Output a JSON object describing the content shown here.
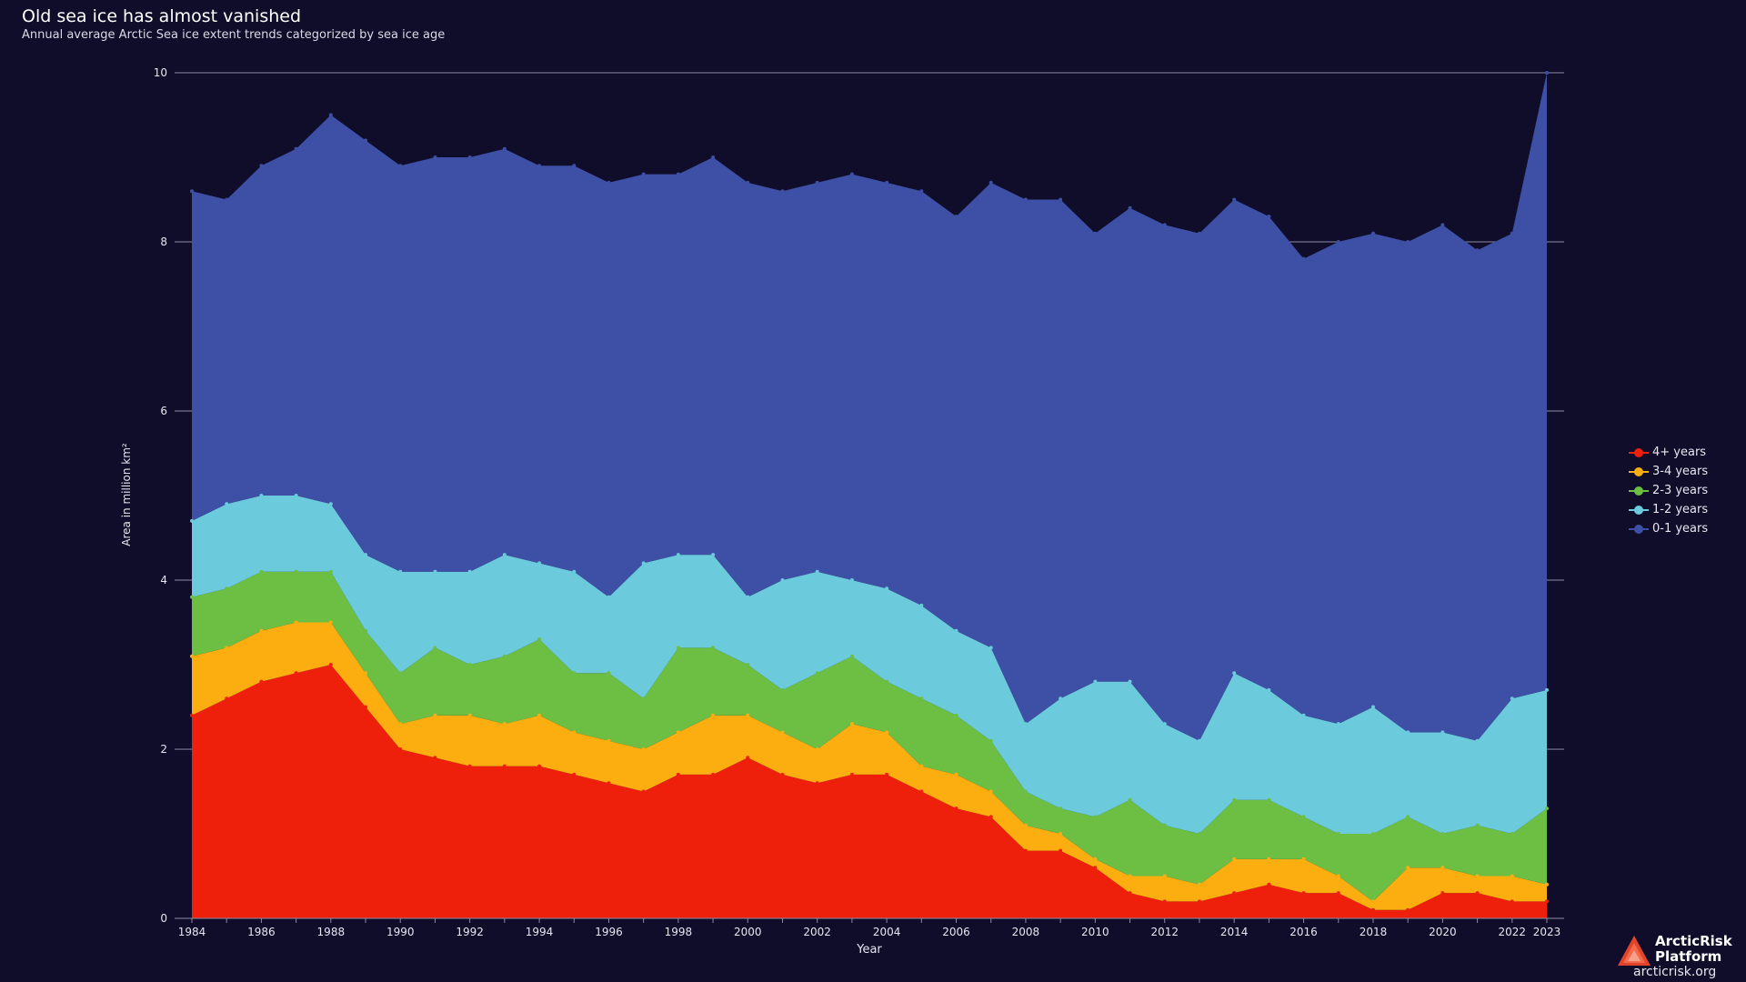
{
  "header": {
    "title": "Old sea ice has almost vanished",
    "subtitle": "Annual average Arctic Sea ice extent trends categorized by sea ice age"
  },
  "brand": {
    "name_line1": "ArcticRisk",
    "name_line2": "Platform",
    "url": "arcticrisk.org",
    "icon": "triangle-logo-icon"
  },
  "colors": {
    "background": "#100d2b",
    "grid": "#8c8aa3",
    "axis_text": "#e6e6ef"
  },
  "chart_data": {
    "type": "area",
    "stacked": true,
    "xlabel": "Year",
    "ylabel": "Area in million km²",
    "ylim": [
      0,
      10
    ],
    "yticks": [
      0,
      2,
      4,
      6,
      8,
      10
    ],
    "xticks": [
      1984,
      1986,
      1988,
      1990,
      1992,
      1994,
      1996,
      1998,
      2000,
      2002,
      2004,
      2006,
      2008,
      2010,
      2012,
      2014,
      2016,
      2018,
      2020,
      2022,
      2023
    ],
    "grid": "horizontal",
    "legend_position": "right",
    "x": [
      1984,
      1985,
      1986,
      1987,
      1988,
      1989,
      1990,
      1991,
      1992,
      1993,
      1994,
      1995,
      1996,
      1997,
      1998,
      1999,
      2000,
      2001,
      2002,
      2003,
      2004,
      2005,
      2006,
      2007,
      2008,
      2009,
      2010,
      2011,
      2012,
      2013,
      2014,
      2015,
      2016,
      2017,
      2018,
      2019,
      2020,
      2021,
      2022,
      2023
    ],
    "series": [
      {
        "name": "4+ years",
        "color": "#ee200c",
        "values": [
          2.4,
          2.6,
          2.8,
          2.9,
          3.0,
          2.5,
          2.0,
          1.9,
          1.8,
          1.8,
          1.8,
          1.7,
          1.6,
          1.5,
          1.7,
          1.7,
          1.9,
          1.7,
          1.6,
          1.7,
          1.7,
          1.5,
          1.3,
          1.2,
          0.8,
          0.8,
          0.6,
          0.3,
          0.2,
          0.2,
          0.3,
          0.4,
          0.3,
          0.3,
          0.1,
          0.1,
          0.3,
          0.3,
          0.2,
          0.2
        ]
      },
      {
        "name": "3-4 years",
        "color": "#fcae11",
        "values": [
          0.7,
          0.6,
          0.6,
          0.6,
          0.5,
          0.4,
          0.3,
          0.5,
          0.6,
          0.5,
          0.6,
          0.5,
          0.5,
          0.5,
          0.5,
          0.7,
          0.5,
          0.5,
          0.4,
          0.6,
          0.5,
          0.3,
          0.4,
          0.3,
          0.3,
          0.2,
          0.1,
          0.2,
          0.3,
          0.2,
          0.4,
          0.3,
          0.4,
          0.2,
          0.1,
          0.5,
          0.3,
          0.2,
          0.3,
          0.2
        ]
      },
      {
        "name": "2-3 years",
        "color": "#6cbf42",
        "values": [
          0.7,
          0.7,
          0.7,
          0.6,
          0.6,
          0.5,
          0.6,
          0.8,
          0.6,
          0.8,
          0.9,
          0.7,
          0.8,
          0.6,
          1.0,
          0.8,
          0.6,
          0.5,
          0.9,
          0.8,
          0.6,
          0.8,
          0.7,
          0.6,
          0.4,
          0.3,
          0.5,
          0.9,
          0.6,
          0.6,
          0.7,
          0.7,
          0.5,
          0.5,
          0.8,
          0.6,
          0.4,
          0.6,
          0.5,
          0.9
        ]
      },
      {
        "name": "1-2 years",
        "color": "#6bcbdd",
        "values": [
          0.9,
          1.0,
          0.9,
          0.9,
          0.8,
          0.9,
          1.2,
          0.9,
          1.1,
          1.2,
          0.9,
          1.2,
          0.9,
          1.6,
          1.1,
          1.1,
          0.8,
          1.3,
          1.2,
          0.9,
          1.1,
          1.1,
          1.0,
          1.1,
          0.8,
          1.3,
          1.6,
          1.4,
          1.2,
          1.1,
          1.5,
          1.3,
          1.2,
          1.3,
          1.5,
          1.0,
          1.2,
          1.0,
          1.6,
          1.4
        ]
      },
      {
        "name": "0-1 years",
        "color": "#3e50a5",
        "values": [
          3.9,
          3.6,
          3.9,
          4.1,
          4.6,
          4.9,
          4.8,
          4.9,
          4.9,
          4.8,
          4.7,
          4.8,
          4.9,
          4.6,
          4.5,
          4.7,
          4.9,
          4.6,
          4.6,
          4.8,
          4.8,
          4.9,
          4.9,
          5.5,
          6.2,
          5.9,
          5.3,
          5.6,
          5.9,
          6.0,
          5.6,
          5.6,
          5.4,
          5.7,
          5.6,
          5.8,
          6.0,
          5.8,
          5.5,
          7.3
        ]
      }
    ]
  }
}
